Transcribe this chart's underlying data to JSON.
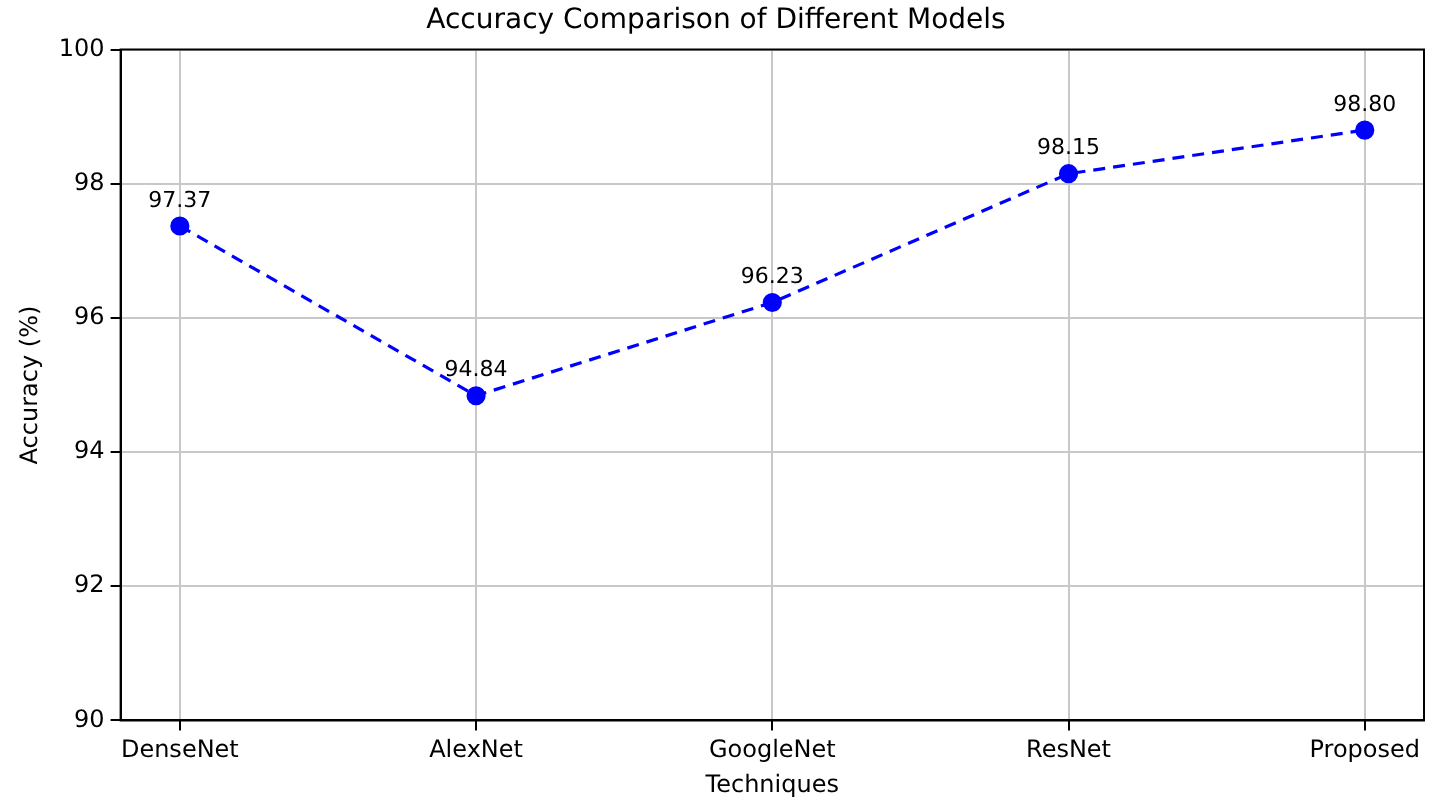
{
  "chart_data": {
    "type": "line",
    "title": "Accuracy Comparison of Different Models",
    "xlabel": "Techniques",
    "ylabel": "Accuracy (%)",
    "categories": [
      "DenseNet",
      "AlexNet",
      "GoogleNet",
      "ResNet",
      "Proposed"
    ],
    "series": [
      {
        "color": "#0000ff",
        "values": [
          97.37,
          94.84,
          96.23,
          98.15,
          98.8
        ],
        "value_labels": [
          "97.37",
          "94.84",
          "96.23",
          "98.15",
          "98.80"
        ]
      }
    ],
    "ylim": [
      90,
      100
    ],
    "yticks": [
      90,
      92,
      94,
      96,
      98,
      100
    ],
    "grid": true,
    "legend": false,
    "marker": "circle",
    "line_style": "dashed"
  }
}
